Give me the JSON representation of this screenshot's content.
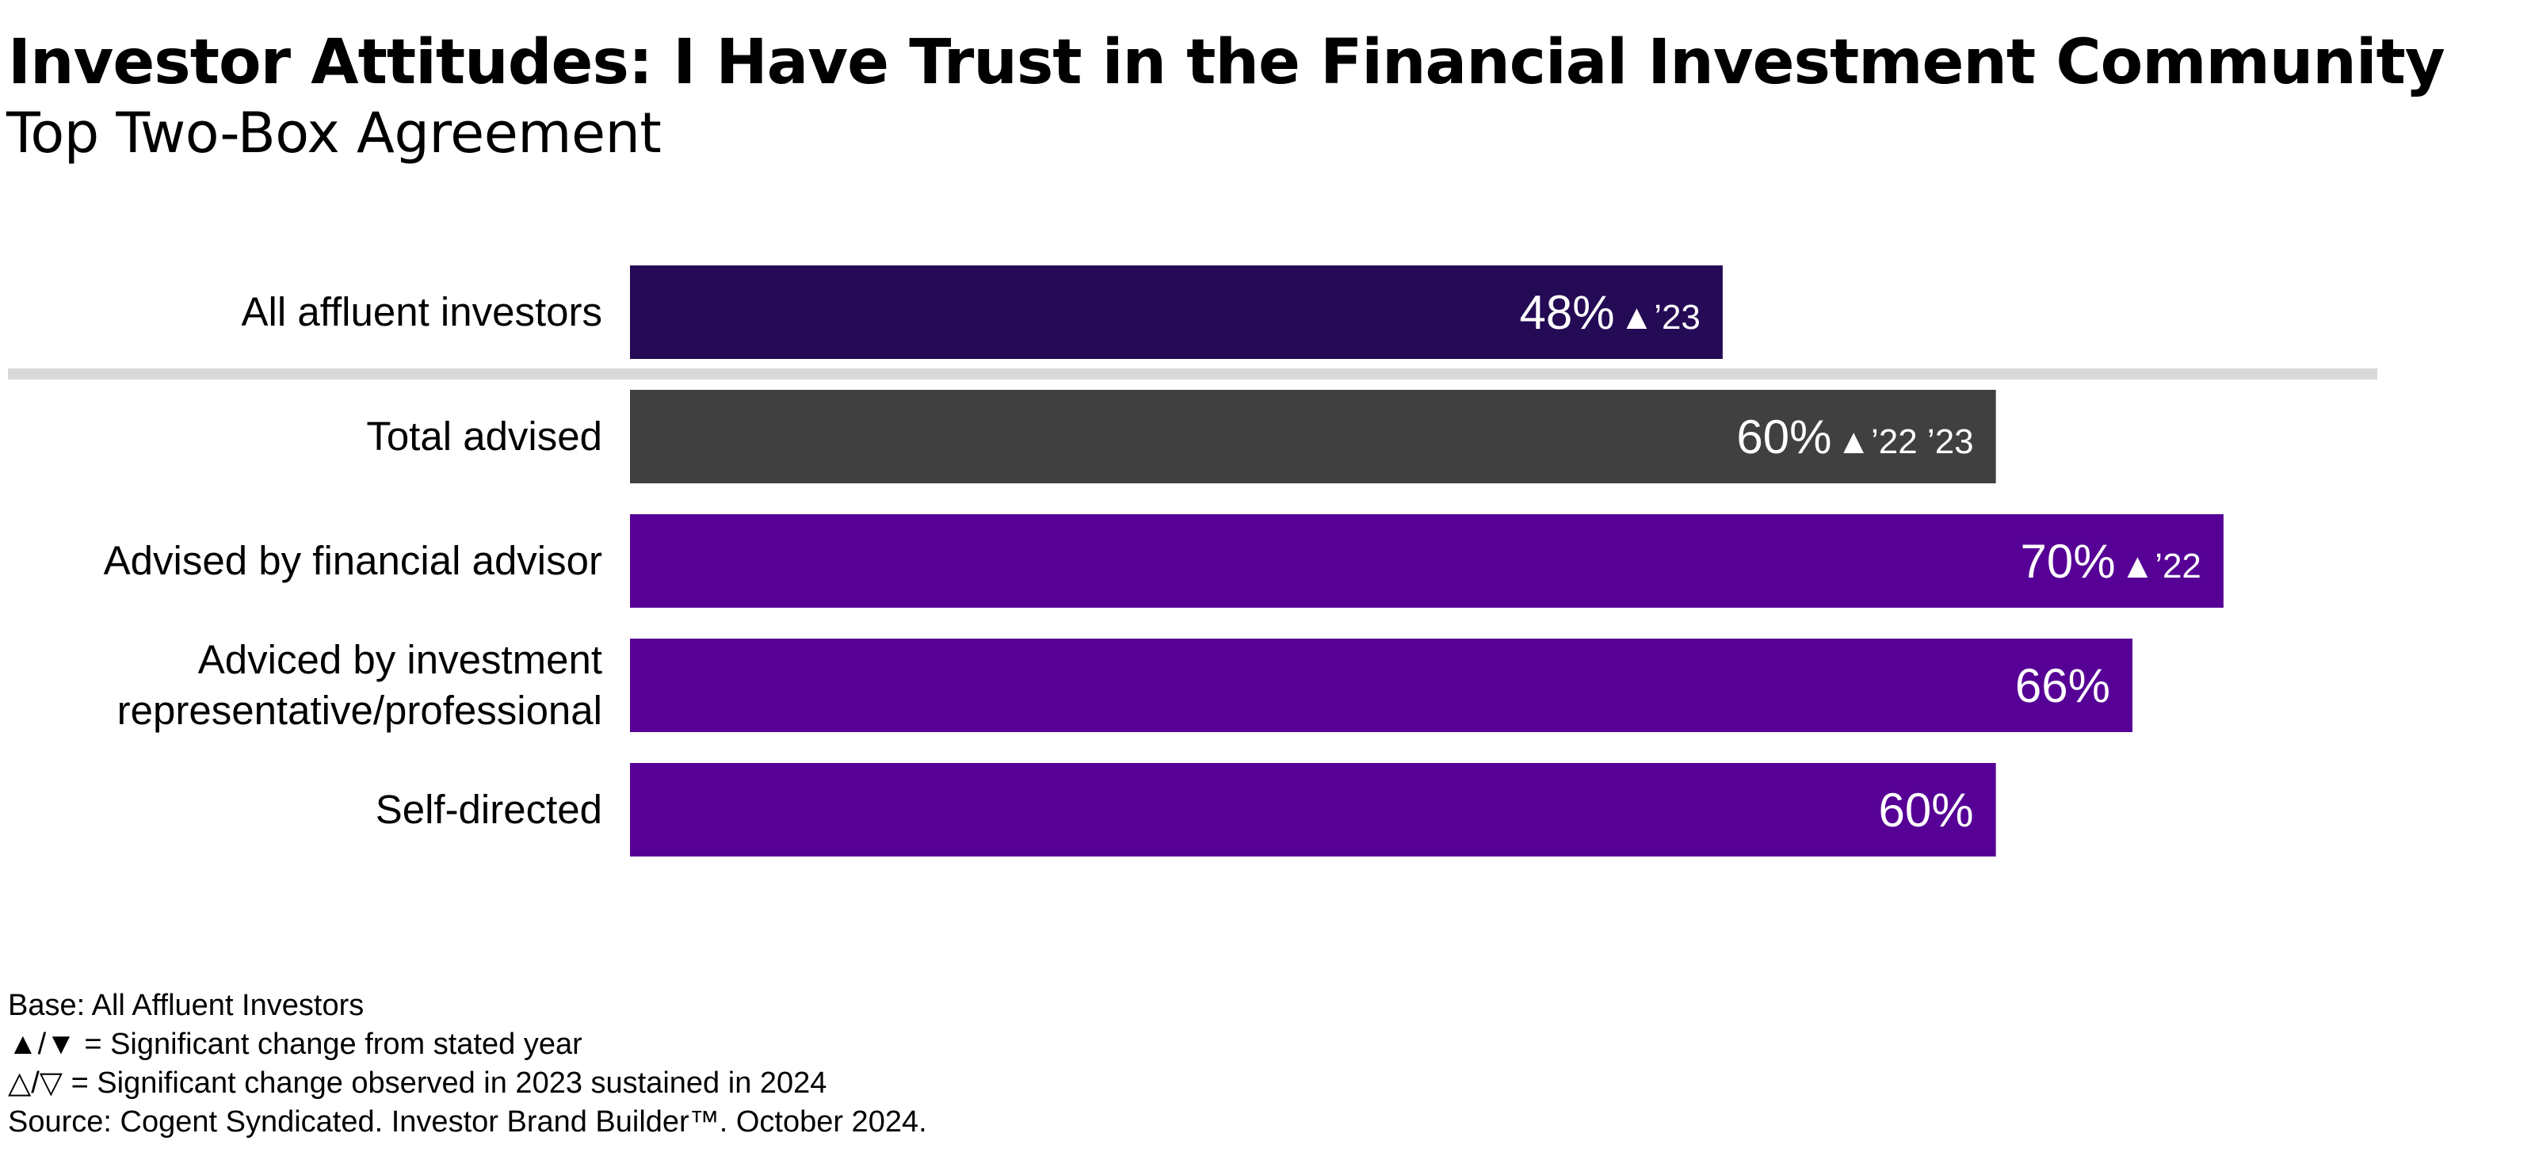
{
  "title": "Investor Attitudes: I Have Trust in the Financial Investment Community",
  "subtitle": "Top Two-Box Agreement",
  "chart_data": {
    "type": "bar",
    "orientation": "horizontal",
    "title": "Investor Attitudes: I Have Trust in the Financial Investment Community",
    "subtitle": "Top Two-Box Agreement",
    "xlim": [
      0,
      100
    ],
    "grid": false,
    "legend": "none",
    "unit": "%",
    "categories": [
      [
        "All affluent investors"
      ],
      [
        "Total advised"
      ],
      [
        "Advised by financial advisor"
      ],
      [
        "Adviced by investment",
        "representative/professional"
      ],
      [
        "Self-directed"
      ]
    ],
    "values": [
      48,
      60,
      70,
      66,
      60
    ],
    "value_labels": [
      "48%",
      "60%",
      "70%",
      "66%",
      "60%"
    ],
    "significance": [
      "▲’23",
      "▲’22 ’23",
      "▲’22",
      "",
      ""
    ],
    "colors": [
      "#250a55",
      "#404040",
      "#560096",
      "#560096",
      "#560096"
    ],
    "separator_after": 0
  },
  "notes": [
    "Base: All Affluent Investors",
    "▲/▼ = Significant change from stated year",
    "△/▽ = Significant change observed in 2023 sustained in 2024",
    "Source: Cogent Syndicated. Investor Brand Builder™. October 2024."
  ]
}
